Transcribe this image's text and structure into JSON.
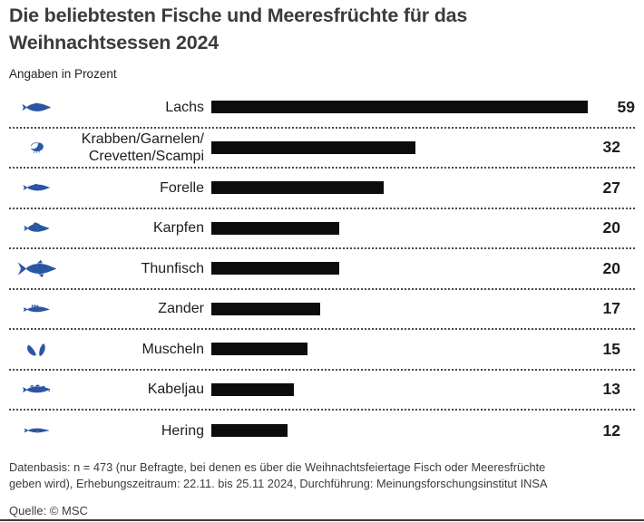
{
  "header": {
    "title_line1": "Die beliebtesten Fische und Meeresfrüchte für das",
    "title_line2": "Weihnachtsessen 2024",
    "subtitle": "Angaben in Prozent"
  },
  "chart_data": {
    "type": "bar",
    "orientation": "horizontal",
    "title": "Die beliebtesten Fische und Meeresfrüchte für das Weihnachtsessen 2024",
    "subtitle": "Angaben in Prozent",
    "unit": "%",
    "xlim": [
      0,
      59
    ],
    "grid": false,
    "legend": false,
    "value_labels": "right-aligned",
    "bar_color": "#0c0c0c",
    "icon_color": "#2a56a4",
    "categories": [
      "Lachs",
      "Krabben/Garnelen/Crevetten/Scampi",
      "Forelle",
      "Karpfen",
      "Thunfisch",
      "Zander",
      "Muscheln",
      "Kabeljau",
      "Hering"
    ],
    "values": [
      59,
      32,
      27,
      20,
      20,
      17,
      15,
      13,
      12
    ],
    "rows": [
      {
        "label": "Lachs",
        "display_label": "Lachs",
        "value": 59,
        "icon": "salmon-fish-icon"
      },
      {
        "label": "Krabben/Garnelen/Crevetten/Scampi",
        "display_label": "Krabben/Garnelen/\nCrevetten/Scampi",
        "value": 32,
        "icon": "shrimp-icon"
      },
      {
        "label": "Forelle",
        "display_label": "Forelle",
        "value": 27,
        "icon": "trout-fish-icon"
      },
      {
        "label": "Karpfen",
        "display_label": "Karpfen",
        "value": 20,
        "icon": "carp-fish-icon"
      },
      {
        "label": "Thunfisch",
        "display_label": "Thunfisch",
        "value": 20,
        "icon": "tuna-fish-icon"
      },
      {
        "label": "Zander",
        "display_label": "Zander",
        "value": 17,
        "icon": "zander-fish-icon"
      },
      {
        "label": "Muscheln",
        "display_label": "Muscheln",
        "value": 15,
        "icon": "mussels-icon"
      },
      {
        "label": "Kabeljau",
        "display_label": "Kabeljau",
        "value": 13,
        "icon": "cod-fish-icon"
      },
      {
        "label": "Hering",
        "display_label": "Hering",
        "value": 12,
        "icon": "herring-fish-icon"
      }
    ]
  },
  "footer": {
    "line1": "Datenbasis: n = 473 (nur Befragte, bei denen es über die Weihnachtsfeiertage Fisch oder Meeresfrüchte",
    "line2": "geben wird), Erhebungszeitraum: 22.11. bis 25.11 2024, Durchführung: Meinungsforschungsinstitut INSA",
    "source": "Quelle: © MSC"
  }
}
